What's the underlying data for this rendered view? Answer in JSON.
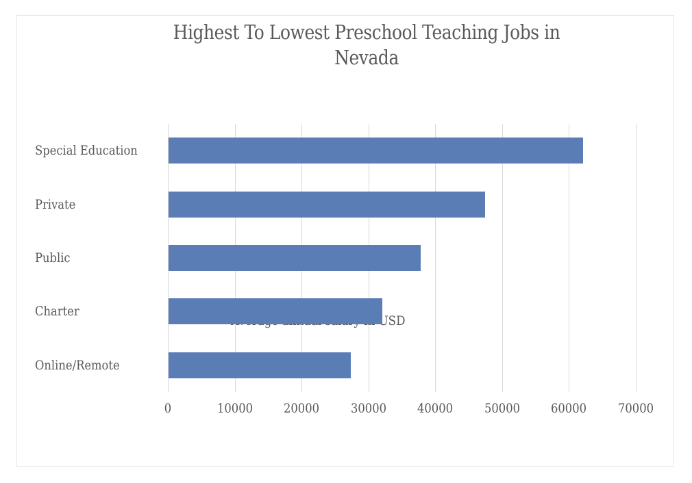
{
  "chart_data": {
    "type": "bar",
    "orientation": "horizontal",
    "title": "Highest To Lowest Preschool Teaching Jobs in Nevada",
    "title_lines": [
      "Highest To Lowest Preschool Teaching Jobs in",
      "Nevada"
    ],
    "categories": [
      "Special Education",
      "Private",
      "Public",
      "Charter",
      "Online/Remote"
    ],
    "values": [
      62000,
      47300,
      37700,
      32000,
      27300
    ],
    "xlabel": "Average annual salary in USD",
    "ylabel": "",
    "xlim": [
      0,
      70000
    ],
    "x_ticks": [
      "0",
      "10000",
      "20000",
      "30000",
      "40000",
      "50000",
      "60000",
      "70000"
    ],
    "grid": "vertical",
    "legend": "none",
    "bar_color": "#5a7db5"
  }
}
